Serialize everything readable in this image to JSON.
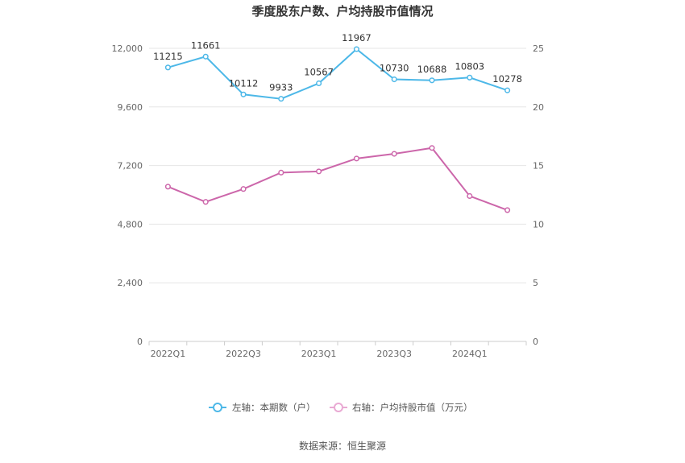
{
  "chart_data": {
    "type": "line",
    "title": "季度股东户数、户均持股市值情况",
    "x": [
      "2022Q1",
      "2022Q2",
      "2022Q3",
      "2022Q4",
      "2023Q1",
      "2023Q2",
      "2023Q3",
      "2023Q4",
      "2024Q1",
      "2024Q2"
    ],
    "x_tick_labels": [
      "2022Q1",
      "2022Q3",
      "2023Q1",
      "2023Q3",
      "2024Q1"
    ],
    "y_left": {
      "range": [
        0,
        12000
      ],
      "ticks": [
        "0",
        "2,400",
        "4,800",
        "7,200",
        "9,600",
        "12,000"
      ]
    },
    "y_right": {
      "range": [
        0,
        25
      ],
      "ticks": [
        "0",
        "5",
        "10",
        "15",
        "20",
        "25"
      ]
    },
    "grid": true,
    "legend_position": "bottom",
    "series": [
      {
        "name": "左轴：本期数（户）",
        "axis": "left",
        "color": "#4db8e8",
        "values": [
          11215,
          11661,
          10112,
          9933,
          10567,
          11967,
          10730,
          10688,
          10803,
          10278
        ],
        "labels": [
          "11215",
          "11661",
          "10112",
          "9933",
          "10567",
          "11967",
          "10730",
          "10688",
          "10803",
          "10278"
        ]
      },
      {
        "name": "右轴：户均持股市值（万元）",
        "axis": "right",
        "color": "#cc66aa",
        "values": [
          13.2,
          11.9,
          13.0,
          14.4,
          14.5,
          15.6,
          16.0,
          16.5,
          12.4,
          11.2
        ]
      }
    ],
    "source": "数据来源：恒生聚源"
  }
}
